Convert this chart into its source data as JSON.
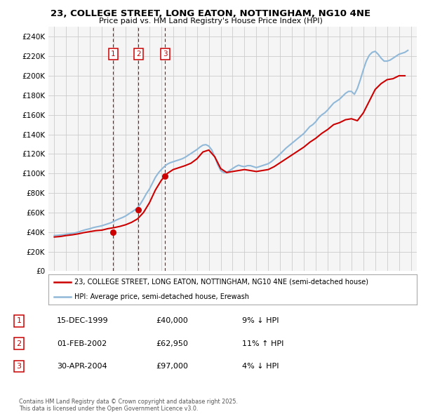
{
  "title": "23, COLLEGE STREET, LONG EATON, NOTTINGHAM, NG10 4NE",
  "subtitle": "Price paid vs. HM Land Registry's House Price Index (HPI)",
  "legend_line1": "23, COLLEGE STREET, LONG EATON, NOTTINGHAM, NG10 4NE (semi-detached house)",
  "legend_line2": "HPI: Average price, semi-detached house, Erewash",
  "footer": "Contains HM Land Registry data © Crown copyright and database right 2025.\nThis data is licensed under the Open Government Licence v3.0.",
  "transactions": [
    {
      "num": 1,
      "date": "15-DEC-1999",
      "price": "£40,000",
      "pct": "9% ↓ HPI",
      "x_year": 1999.96,
      "y_val": 40000
    },
    {
      "num": 2,
      "date": "01-FEB-2002",
      "price": "£62,950",
      "pct": "11% ↑ HPI",
      "x_year": 2002.08,
      "y_val": 62950
    },
    {
      "num": 3,
      "date": "30-APR-2004",
      "price": "£97,000",
      "pct": "4% ↓ HPI",
      "x_year": 2004.33,
      "y_val": 97000
    }
  ],
  "ylim": [
    0,
    250000
  ],
  "yticks": [
    0,
    20000,
    40000,
    60000,
    80000,
    100000,
    120000,
    140000,
    160000,
    180000,
    200000,
    220000,
    240000
  ],
  "xlim": [
    1994.5,
    2025.5
  ],
  "xticks": [
    1995,
    1996,
    1997,
    1998,
    1999,
    2000,
    2001,
    2002,
    2003,
    2004,
    2005,
    2006,
    2007,
    2008,
    2009,
    2010,
    2011,
    2012,
    2013,
    2014,
    2015,
    2016,
    2017,
    2018,
    2019,
    2020,
    2021,
    2022,
    2023,
    2024,
    2025
  ],
  "price_color": "#cc0000",
  "hpi_color": "#90b8d8",
  "grid_color": "#cccccc",
  "bg_color": "#f5f5f5",
  "hpi_data_years": [
    1995.0,
    1995.25,
    1995.5,
    1995.75,
    1996.0,
    1996.25,
    1996.5,
    1996.75,
    1997.0,
    1997.25,
    1997.5,
    1997.75,
    1998.0,
    1998.25,
    1998.5,
    1998.75,
    1999.0,
    1999.25,
    1999.5,
    1999.75,
    2000.0,
    2000.25,
    2000.5,
    2000.75,
    2001.0,
    2001.25,
    2001.5,
    2001.75,
    2002.0,
    2002.25,
    2002.5,
    2002.75,
    2003.0,
    2003.25,
    2003.5,
    2003.75,
    2004.0,
    2004.25,
    2004.5,
    2004.75,
    2005.0,
    2005.25,
    2005.5,
    2005.75,
    2006.0,
    2006.25,
    2006.5,
    2006.75,
    2007.0,
    2007.25,
    2007.5,
    2007.75,
    2008.0,
    2008.25,
    2008.5,
    2008.75,
    2009.0,
    2009.25,
    2009.5,
    2009.75,
    2010.0,
    2010.25,
    2010.5,
    2010.75,
    2011.0,
    2011.25,
    2011.5,
    2011.75,
    2012.0,
    2012.25,
    2012.5,
    2012.75,
    2013.0,
    2013.25,
    2013.5,
    2013.75,
    2014.0,
    2014.25,
    2014.5,
    2014.75,
    2015.0,
    2015.25,
    2015.5,
    2015.75,
    2016.0,
    2016.25,
    2016.5,
    2016.75,
    2017.0,
    2017.25,
    2017.5,
    2017.75,
    2018.0,
    2018.25,
    2018.5,
    2018.75,
    2019.0,
    2019.25,
    2019.5,
    2019.75,
    2020.0,
    2020.25,
    2020.5,
    2020.75,
    2021.0,
    2021.25,
    2021.5,
    2021.75,
    2022.0,
    2022.25,
    2022.5,
    2022.75,
    2023.0,
    2023.25,
    2023.5,
    2023.75,
    2024.0,
    2024.25,
    2024.5,
    2024.75
  ],
  "hpi_data_values": [
    36500,
    36700,
    37000,
    37300,
    37800,
    38200,
    38700,
    39200,
    40000,
    41000,
    42000,
    42800,
    43500,
    44500,
    45200,
    45800,
    46500,
    47500,
    48500,
    49500,
    51000,
    52500,
    53800,
    55000,
    56500,
    58500,
    60500,
    62500,
    65000,
    69000,
    74000,
    79500,
    84000,
    90000,
    96000,
    100500,
    104000,
    107000,
    109500,
    111000,
    112000,
    113000,
    114000,
    115000,
    116500,
    118500,
    120500,
    122500,
    124500,
    127000,
    129000,
    129500,
    128000,
    124000,
    117000,
    109000,
    103000,
    101000,
    101000,
    103000,
    105000,
    107000,
    108500,
    107500,
    107000,
    108000,
    108000,
    107000,
    106000,
    107000,
    108000,
    109000,
    110000,
    112000,
    114500,
    117000,
    120000,
    123000,
    126000,
    128500,
    131000,
    133500,
    136000,
    138500,
    141000,
    144500,
    148000,
    150000,
    153000,
    157000,
    160000,
    162000,
    165000,
    168500,
    172000,
    174000,
    176000,
    179000,
    182000,
    184000,
    184000,
    181000,
    187000,
    196000,
    206000,
    215000,
    221000,
    224000,
    225000,
    222000,
    218000,
    215000,
    215000,
    216000,
    218000,
    220000,
    222000,
    223000,
    224000,
    226000
  ],
  "price_data_years": [
    1995.0,
    1995.5,
    1996.0,
    1996.5,
    1997.0,
    1997.5,
    1998.0,
    1998.5,
    1999.0,
    1999.5,
    2000.0,
    2000.5,
    2001.0,
    2001.5,
    2002.0,
    2002.5,
    2003.0,
    2003.5,
    2004.0,
    2004.5,
    2005.0,
    2005.5,
    2006.0,
    2006.5,
    2007.0,
    2007.5,
    2008.0,
    2008.5,
    2009.0,
    2009.5,
    2010.0,
    2010.5,
    2011.0,
    2011.5,
    2012.0,
    2012.5,
    2013.0,
    2013.5,
    2014.0,
    2014.5,
    2015.0,
    2015.5,
    2016.0,
    2016.5,
    2017.0,
    2017.5,
    2018.0,
    2018.5,
    2019.0,
    2019.5,
    2020.0,
    2020.5,
    2021.0,
    2021.5,
    2022.0,
    2022.5,
    2023.0,
    2023.5,
    2024.0,
    2024.5
  ],
  "price_data_values": [
    35000,
    35500,
    36500,
    37200,
    38200,
    39500,
    40500,
    41500,
    42000,
    43500,
    44500,
    45800,
    47500,
    50000,
    53500,
    60000,
    70000,
    83000,
    93000,
    100000,
    104000,
    106000,
    108000,
    110500,
    115000,
    122000,
    124000,
    117000,
    105000,
    101000,
    102000,
    103000,
    104000,
    103000,
    102000,
    103000,
    104000,
    107000,
    111000,
    115000,
    119000,
    123000,
    127000,
    132000,
    136000,
    141000,
    145000,
    150000,
    152000,
    155000,
    156000,
    154000,
    162000,
    174000,
    186000,
    192000,
    196000,
    197000,
    200000,
    200000
  ]
}
